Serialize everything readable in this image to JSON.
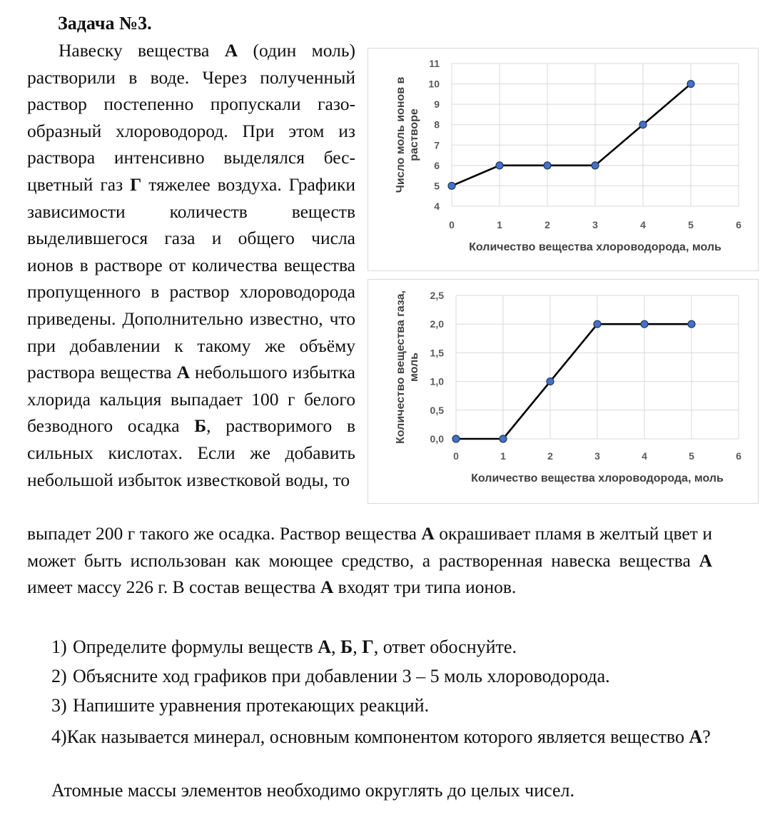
{
  "task_title": "Задача №3.",
  "paragraph": {
    "p1": "Навеску вещества ",
    "a1": "А",
    "p2": " (один моль) растворили в воде. Через полученный раствор постепенно пропускали газо­образный хлороводород. При этом из раствора интенсивно выделялся бес­цветный газ ",
    "g1": "Г",
    "p3": " тяжелее воздуха. Гра­фики зависимости количеств веществ выделившегося газа и общего числа ионов в растворе от количества веще­ства пропущенного в раствор хлоро­водорода приведены. Дополнительно известно, что при добавлении к та­кому же объёму раствора вещества ",
    "a2": "А",
    "p4": " небольшого избытка хлорида кальция выпадает 100 г белого безводного осадка ",
    "b1": "Б",
    "p5": ", растворимого в сильных кислотах. Если же добавить неболь­шой избыток известковой воды, то"
  },
  "continuation": {
    "c1": "выпадет 200 г такого же осадка. Раствор вещества ",
    "a3": "А",
    "c2": " окрашивает пламя в жел­тый цвет и может быть использован как моющее средство, а растворенная навеска вещества ",
    "a4": "А",
    "c3": " имеет массу 226 г. В состав вещества ",
    "a5": "А",
    "c4": " входят три типа ионов."
  },
  "questions": {
    "q1_num": "1)",
    "q1_text": "Определите формулы веществ ",
    "q1_a": "А",
    "q1_sep1": ", ",
    "q1_b": "Б",
    "q1_sep2": ", ",
    "q1_g": "Г",
    "q1_end": ", ответ обоснуйте.",
    "q2_num": "2)",
    "q2_text": "Объясните ход графиков при добавлении 3 – 5 моль хлороводорода.",
    "q3_num": "3)",
    "q3_text": "Напишите уравнения протекающих реакций.",
    "q4_num": "4)",
    "q4_text": "Как называется минерал, основным компонентом которого является ве­щество ",
    "q4_a": "А",
    "q4_end": "?"
  },
  "note": "Атомные массы элементов необходимо округлять до целых чисел.",
  "chart_data": [
    {
      "type": "line",
      "title": "",
      "xlabel": "Количество вещества хлороводорода, моль",
      "ylabel": "Число моль ионов в растворе",
      "ylabel_lines": [
        "Число моль ионов в",
        "растворе"
      ],
      "x": [
        0,
        1,
        2,
        3,
        4,
        5
      ],
      "values": [
        5,
        6,
        6,
        6,
        8,
        10
      ],
      "xlim": [
        0,
        6
      ],
      "ylim": [
        4,
        11
      ],
      "xticks": [
        "0",
        "1",
        "2",
        "3",
        "4",
        "5",
        "6"
      ],
      "yticks": [
        "4",
        "5",
        "6",
        "7",
        "8",
        "9",
        "10",
        "11"
      ],
      "grid": true,
      "line_color": "#000000",
      "marker_color": "#4472c4"
    },
    {
      "type": "line",
      "title": "",
      "xlabel": "Количество вещества хлороводорода, моль",
      "ylabel": "Количество вещества газа, моль",
      "ylabel_lines": [
        "Количество вещества газа,",
        "моль"
      ],
      "x": [
        0,
        1,
        2,
        3,
        4,
        5
      ],
      "values": [
        0,
        0,
        1,
        2,
        2,
        2
      ],
      "xlim": [
        0,
        6
      ],
      "ylim": [
        0,
        2.5
      ],
      "xticks": [
        "0",
        "1",
        "2",
        "3",
        "4",
        "5",
        "6"
      ],
      "yticks": [
        "0,0",
        "0,5",
        "1,0",
        "1,5",
        "2,0",
        "2,5"
      ],
      "grid": true,
      "line_color": "#000000",
      "marker_color": "#4472c4"
    }
  ]
}
